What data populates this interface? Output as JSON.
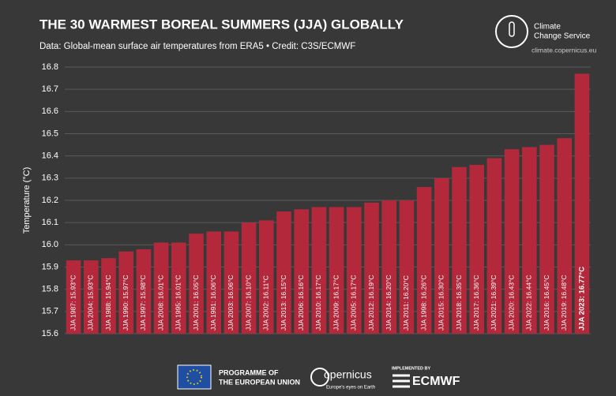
{
  "chart_data": {
    "type": "bar",
    "title": "THE 30 WARMEST BOREAL SUMMERS (JJA) GLOBALLY",
    "subtitle": "Data: Global-mean surface air temperatures from ERA5 • Credit: C3S/ECMWF",
    "y_label": "Temperature (°C)",
    "categories": [
      "JJA 1987: 15.93°C",
      "JJA 2004: 15.93°C",
      "JJA 1988: 15.94°C",
      "JJA 1990: 15.97°C",
      "JJA 1997: 15.98°C",
      "JJA 2008: 16.01°C",
      "JJA 1995: 16.01°C",
      "JJA 2001: 16.05°C",
      "JJA 1991: 16.06°C",
      "JJA 2003: 16.06°C",
      "JJA 2007: 16.10°C",
      "JJA 2002: 16.11°C",
      "JJA 2013: 16.15°C",
      "JJA 2006: 16.16°C",
      "JJA 2010: 16.17°C",
      "JJA 2009: 16.17°C",
      "JJA 2005: 16.17°C",
      "JJA 2012: 16.19°C",
      "JJA 2014: 16.20°C",
      "JJA 2011: 16.20°C",
      "JJA 1998: 16.26°C",
      "JJA 2015: 16.30°C",
      "JJA 2018: 16.35°C",
      "JJA 2017: 16.36°C",
      "JJA 2021: 16.39°C",
      "JJA 2020: 16.43°C",
      "JJA 2022: 16.44°C",
      "JJA 2016: 16.45°C",
      "JJA 2019: 16.48°C",
      "JJA 2023: 16.77°C"
    ],
    "values": [
      15.93,
      15.93,
      15.94,
      15.97,
      15.98,
      16.01,
      16.01,
      16.05,
      16.06,
      16.06,
      16.1,
      16.11,
      16.15,
      16.16,
      16.17,
      16.17,
      16.17,
      16.19,
      16.2,
      16.2,
      16.26,
      16.3,
      16.35,
      16.36,
      16.39,
      16.43,
      16.44,
      16.45,
      16.48,
      16.77
    ],
    "color": "#b3283a",
    "ylim": [
      15.6,
      16.8
    ],
    "yticks": [
      15.6,
      15.7,
      15.8,
      15.9,
      {
        "value": 16,
        "label": "16.0"
      },
      16.1,
      16.2,
      16.3,
      16.4,
      16.5,
      16.6,
      16.7,
      16.8
    ],
    "grid": true
  },
  "branding": {
    "service": [
      "Climate",
      "Change Service"
    ],
    "url": "climate.copernicus.eu",
    "eu": [
      "PROGRAMME OF",
      "THE EUROPEAN UNION"
    ],
    "copernicus": "opernicus",
    "copernicus_tagline": "Europe's eyes on Earth",
    "implemented": "IMPLEMENTED BY",
    "ecmwf": "ECMWF"
  }
}
